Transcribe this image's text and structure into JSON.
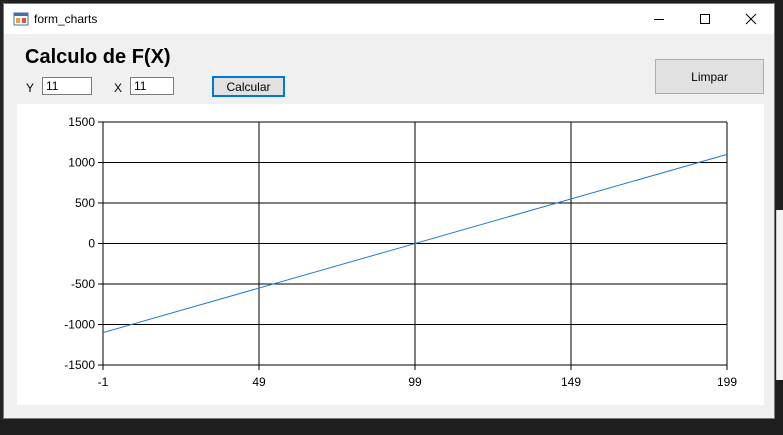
{
  "window": {
    "title": "form_charts",
    "controls": {
      "minimize": "minimize-icon",
      "maximize": "maximize-icon",
      "close": "close-icon"
    }
  },
  "form": {
    "heading": "Calculo de F(X)",
    "y_label": "Y",
    "y_value": "11",
    "x_label": "X",
    "x_value": "11",
    "calc_button": "Calcular",
    "clear_button": "Limpar"
  },
  "chart_data": {
    "type": "line",
    "title": "",
    "xlabel": "",
    "ylabel": "",
    "xlim": [
      -1,
      199
    ],
    "ylim": [
      -1500,
      1500
    ],
    "x_ticks": [
      -1,
      49,
      99,
      149,
      199
    ],
    "y_ticks": [
      -1500,
      -1000,
      -500,
      0,
      500,
      1000,
      1500
    ],
    "grid": true,
    "legend": "none",
    "series": [
      {
        "x": [
          -1,
          199
        ],
        "y": [
          -1100,
          1100
        ],
        "color": "#1e7ad8"
      }
    ]
  }
}
